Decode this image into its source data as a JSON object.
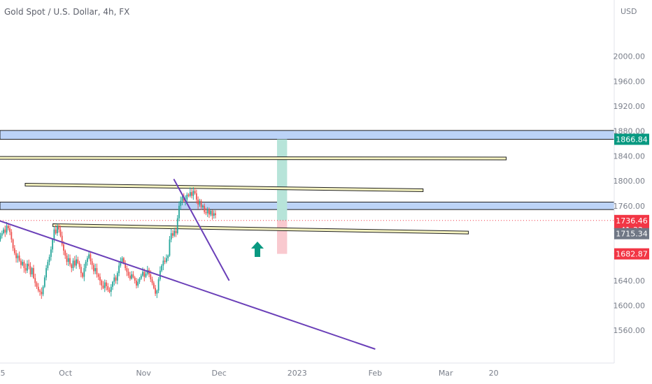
{
  "header": {
    "title": "Gold Spot / U.S. Dollar, 4h, FX",
    "currency": "USD"
  },
  "colors": {
    "up": "#26a69a",
    "down": "#ef5350",
    "zone": "#bcd3f7",
    "zone_border": "#1e1e1e",
    "trendline": "#6a3fb8",
    "channel_fill": "#f5f3c0",
    "channel_border": "#222222",
    "target_green": "#b7e4d9",
    "stop_red": "#f9c9cf",
    "tag_green": "#089981",
    "tag_red": "#f23645",
    "tag_gray": "#707785",
    "arrow": "#089981"
  },
  "chart_data": {
    "type": "candlestick",
    "title": "Gold Spot / U.S. Dollar, 4h, FX",
    "xlabel": "",
    "ylabel": "USD",
    "ylim": [
      1530,
      2040
    ],
    "yticks": [
      "2000.00",
      "1960.00",
      "1920.00",
      "1880.00",
      "1840.00",
      "1800.00",
      "1760.00",
      "1720.00",
      "1680.00",
      "1640.00",
      "1600.00",
      "1560.00"
    ],
    "xticks": [
      "5",
      "Oct",
      "Nov",
      "Dec",
      "2023",
      "Feb",
      "Mar",
      "20"
    ],
    "price_path": [
      1702,
      1706,
      1712,
      1716,
      1722,
      1717,
      1728,
      1724,
      1718,
      1706,
      1692,
      1684,
      1676,
      1680,
      1672,
      1665,
      1670,
      1660,
      1656,
      1667,
      1663,
      1650,
      1660,
      1644,
      1636,
      1630,
      1624,
      1622,
      1618,
      1630,
      1645,
      1660,
      1670,
      1678,
      1690,
      1706,
      1722,
      1716,
      1728,
      1722,
      1712,
      1698,
      1688,
      1680,
      1670,
      1676,
      1666,
      1660,
      1672,
      1664,
      1674,
      1668,
      1662,
      1652,
      1646,
      1660,
      1670,
      1676,
      1682,
      1671,
      1665,
      1655,
      1660,
      1650,
      1646,
      1640,
      1632,
      1628,
      1637,
      1631,
      1625,
      1622,
      1630,
      1638,
      1645,
      1640,
      1652,
      1664,
      1670,
      1676,
      1668,
      1660,
      1654,
      1648,
      1643,
      1650,
      1645,
      1640,
      1632,
      1638,
      1643,
      1648,
      1654,
      1646,
      1651,
      1657,
      1650,
      1642,
      1636,
      1628,
      1619,
      1624,
      1642,
      1656,
      1664,
      1672,
      1670,
      1676,
      1680,
      1706,
      1716,
      1712,
      1720,
      1716,
      1740,
      1760,
      1768,
      1774,
      1768,
      1770,
      1778,
      1776,
      1782,
      1776,
      1784,
      1780,
      1770,
      1762,
      1768,
      1758,
      1760,
      1750,
      1748,
      1754,
      1746,
      1752,
      1744,
      1748,
      1745
    ],
    "levels": [
      {
        "kind": "zone",
        "low": 1866.84,
        "high": 1881
      },
      {
        "kind": "zone",
        "low": 1754,
        "high": 1766
      },
      {
        "kind": "channel",
        "x1": "2022-08-25",
        "x2": "2023-03-25",
        "y1": 1837,
        "y2": 1836
      },
      {
        "kind": "channel",
        "x1": "2022-09-15",
        "x2": "2023-02-20",
        "y1": 1794,
        "y2": 1785
      },
      {
        "kind": "channel",
        "x1": "2022-09-26",
        "x2": "2023-03-10",
        "y1": 1729,
        "y2": 1717
      },
      {
        "kind": "trendline",
        "x1": "2022-08-30",
        "x2": "2023-02-01",
        "y1": 1744,
        "y2": 1530
      },
      {
        "kind": "trendline",
        "x1": "2022-11-13",
        "x2": "2022-12-05",
        "y1": 1803,
        "y2": 1640
      },
      {
        "kind": "target",
        "x1": "2022-12-24",
        "x2": "2022-12-28",
        "y1": 1736.46,
        "y2": 1866.84
      },
      {
        "kind": "stop",
        "x1": "2022-12-24",
        "x2": "2022-12-28",
        "y1": 1736.46,
        "y2": 1682.87
      }
    ],
    "price_tags": [
      {
        "value": "1866.84",
        "price": 1866.84,
        "color": "#089981"
      },
      {
        "value": "1736.46",
        "sub": "41:33",
        "price": 1736.46,
        "color": "#f23645"
      },
      {
        "value": "1715.34",
        "price": 1715.34,
        "color": "#707785"
      },
      {
        "value": "1682.87",
        "price": 1682.87,
        "color": "#f23645"
      }
    ],
    "current_price": 1736.46,
    "grid": false,
    "annotations": [
      "up-arrow"
    ]
  }
}
